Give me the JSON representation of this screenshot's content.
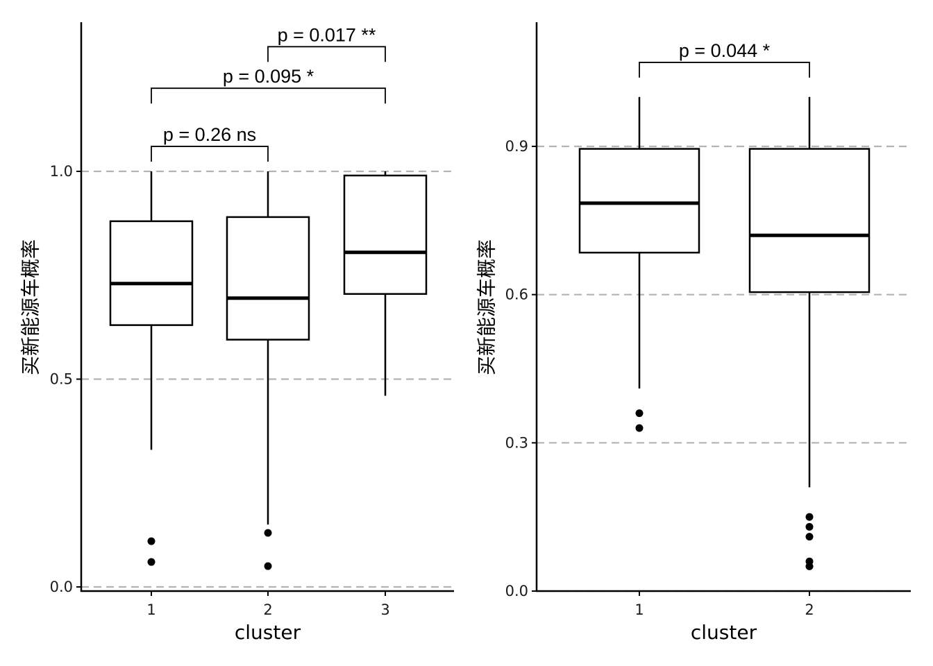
{
  "chart_data": [
    {
      "type": "boxplot",
      "xlabel": "cluster",
      "ylabel": "买新能源车概率",
      "categories": [
        "1",
        "2",
        "3"
      ],
      "ylim": [
        0,
        1.35
      ],
      "yticks": [
        0.0,
        0.5,
        1.0
      ],
      "ytick_labels": [
        "0.0",
        "0.5",
        "1.0"
      ],
      "grid": "dashed horizontal at y ticks",
      "boxes": [
        {
          "category": "1",
          "whisker_low": 0.33,
          "q1": 0.63,
          "median": 0.73,
          "q3": 0.88,
          "whisker_high": 1.0,
          "outliers": [
            0.11,
            0.06
          ]
        },
        {
          "category": "2",
          "whisker_low": 0.15,
          "q1": 0.595,
          "median": 0.695,
          "q3": 0.89,
          "whisker_high": 1.0,
          "outliers": [
            0.13,
            0.05
          ]
        },
        {
          "category": "3",
          "whisker_low": 0.46,
          "q1": 0.705,
          "median": 0.805,
          "q3": 0.99,
          "whisker_high": 1.0,
          "outliers": []
        }
      ],
      "annotations": [
        {
          "from": "1",
          "to": "2",
          "label": "p = 0.26 ns",
          "level": 1.06
        },
        {
          "from": "1",
          "to": "3",
          "label": "p = 0.095 *",
          "level": 1.2
        },
        {
          "from": "2",
          "to": "3",
          "label": "p = 0.017 **",
          "level": 1.3
        }
      ]
    },
    {
      "type": "boxplot",
      "xlabel": "cluster",
      "ylabel": "买新能源车概率",
      "categories": [
        "1",
        "2"
      ],
      "ylim": [
        0,
        1.15
      ],
      "yticks": [
        0.0,
        0.3,
        0.6,
        0.9
      ],
      "ytick_labels": [
        "0.0",
        "0.3",
        "0.6",
        "0.9"
      ],
      "grid": "dashed horizontal at y ticks",
      "boxes": [
        {
          "category": "1",
          "whisker_low": 0.41,
          "q1": 0.685,
          "median": 0.785,
          "q3": 0.895,
          "whisker_high": 1.0,
          "outliers": [
            0.36,
            0.33
          ]
        },
        {
          "category": "2",
          "whisker_low": 0.21,
          "q1": 0.605,
          "median": 0.72,
          "q3": 0.895,
          "whisker_high": 1.0,
          "outliers": [
            0.15,
            0.13,
            0.11,
            0.06,
            0.05
          ]
        }
      ],
      "annotations": [
        {
          "from": "1",
          "to": "2",
          "label": "p = 0.044 *",
          "level": 1.07
        }
      ]
    }
  ]
}
